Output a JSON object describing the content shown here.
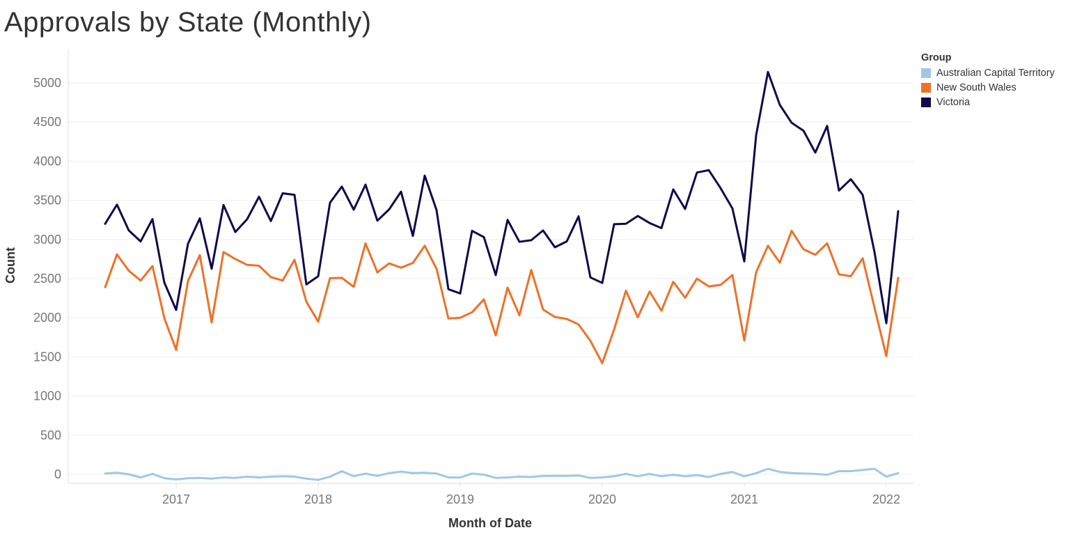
{
  "chart_data": {
    "type": "line",
    "title": "Approvals by State (Monthly)",
    "xlabel": "Month of Date",
    "ylabel": "Count",
    "ylim": [
      -100,
      5400
    ],
    "yticks": [
      0,
      500,
      1000,
      1500,
      2000,
      2500,
      3000,
      3500,
      4000,
      4500,
      5000
    ],
    "xticks": [
      "2017",
      "2018",
      "2019",
      "2020",
      "2021",
      "2022"
    ],
    "x_start": "2016-07",
    "grid": "horizontal",
    "legend_title": "Group",
    "legend_position": "right",
    "series": [
      {
        "name": "Australian Capital Territory",
        "color": "#9ec8e8",
        "values": [
          10,
          20,
          0,
          -40,
          5,
          -50,
          -65,
          -50,
          -45,
          -55,
          -40,
          -45,
          -30,
          -40,
          -30,
          -25,
          -30,
          -55,
          -70,
          -30,
          40,
          -25,
          10,
          -20,
          15,
          35,
          15,
          20,
          10,
          -40,
          -40,
          10,
          -5,
          -45,
          -40,
          -30,
          -35,
          -20,
          -20,
          -20,
          -15,
          -45,
          -40,
          -25,
          5,
          -25,
          5,
          -25,
          -5,
          -25,
          -10,
          -35,
          5,
          30,
          -25,
          15,
          70,
          30,
          15,
          10,
          5,
          -5,
          40,
          40,
          55,
          70,
          -30,
          15
        ]
      },
      {
        "name": "New South Wales",
        "color": "#ee7128",
        "values": [
          2390,
          2810,
          2600,
          2475,
          2660,
          1995,
          1590,
          2470,
          2800,
          1940,
          2840,
          2750,
          2675,
          2665,
          2520,
          2475,
          2740,
          2205,
          1950,
          2505,
          2510,
          2395,
          2950,
          2580,
          2695,
          2640,
          2700,
          2920,
          2625,
          1990,
          2000,
          2070,
          2235,
          1775,
          2385,
          2030,
          2610,
          2105,
          2010,
          1985,
          1915,
          1705,
          1420,
          1850,
          2345,
          2005,
          2335,
          2090,
          2460,
          2255,
          2500,
          2400,
          2420,
          2545,
          1710,
          2580,
          2920,
          2705,
          3110,
          2875,
          2805,
          2950,
          2555,
          2530,
          2760,
          2130,
          1510,
          2510
        ]
      },
      {
        "name": "Victoria",
        "color": "#0e0a4b",
        "values": [
          3200,
          3445,
          3115,
          2975,
          3260,
          2450,
          2100,
          2945,
          3270,
          2625,
          3440,
          3095,
          3260,
          3545,
          3235,
          3590,
          3570,
          2425,
          2530,
          3470,
          3675,
          3380,
          3700,
          3240,
          3385,
          3610,
          3045,
          3815,
          3375,
          2365,
          2310,
          3110,
          3030,
          2545,
          3250,
          2970,
          2990,
          3115,
          2900,
          2975,
          3295,
          2515,
          2445,
          3195,
          3200,
          3300,
          3210,
          3145,
          3640,
          3390,
          3855,
          3885,
          3655,
          3395,
          2720,
          4330,
          5140,
          4720,
          4490,
          4390,
          4110,
          4450,
          3625,
          3770,
          3570,
          2840,
          1930,
          3360
        ]
      }
    ]
  }
}
